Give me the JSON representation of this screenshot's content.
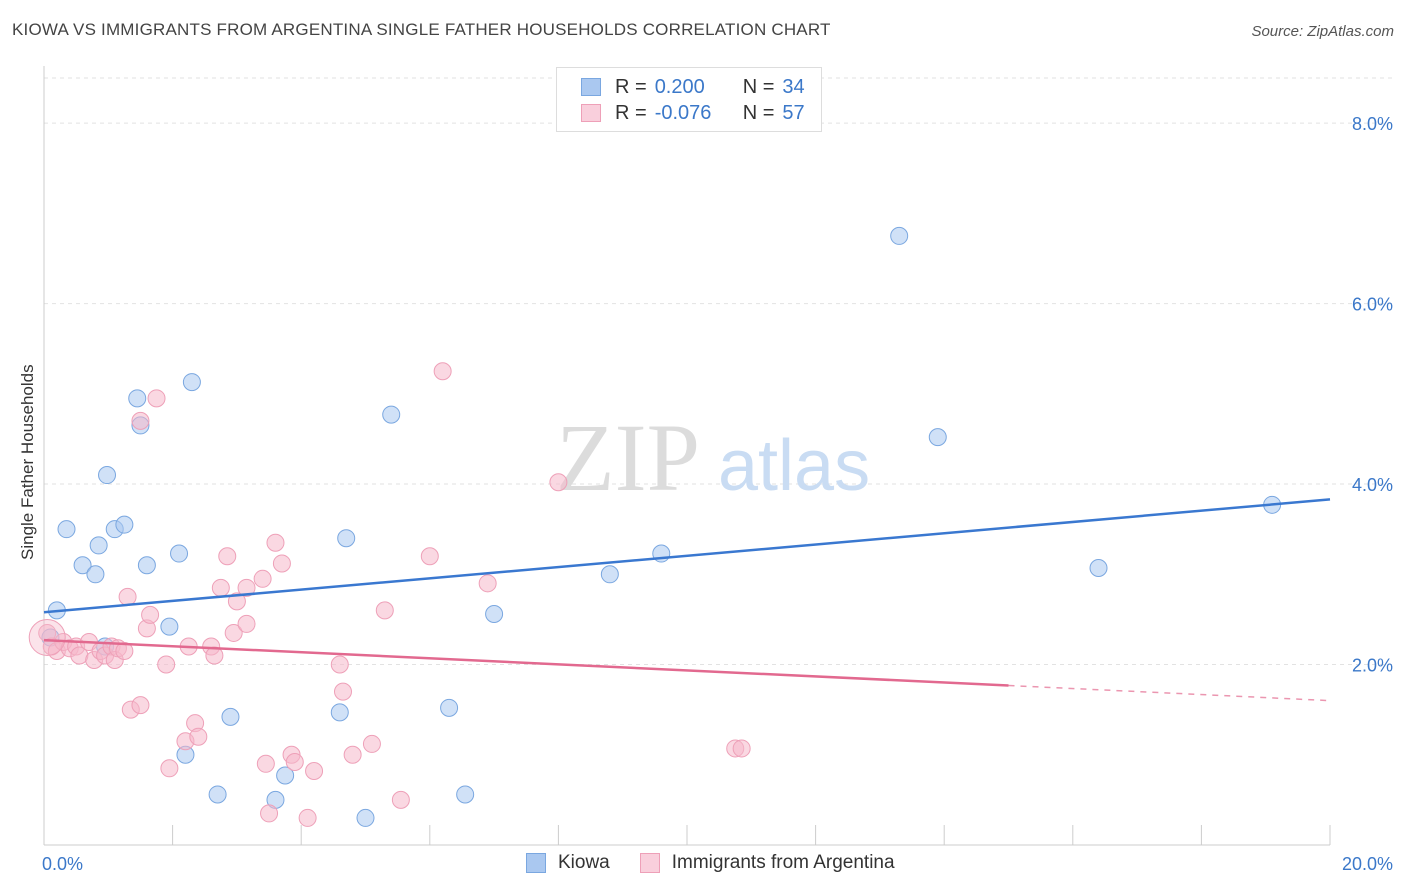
{
  "title": "KIOWA VS IMMIGRANTS FROM ARGENTINA SINGLE FATHER HOUSEHOLDS CORRELATION CHART",
  "source": "Source: ZipAtlas.com",
  "watermark": {
    "zip": "ZIP",
    "atlas": "atlas"
  },
  "legend_top": {
    "rows": [
      {
        "r_label": "R =",
        "r_value": "0.200",
        "n_label": "N =",
        "n_value": "34",
        "color": "#aac8f0"
      },
      {
        "r_label": "R =",
        "r_value": "-0.076",
        "n_label": "N =",
        "n_value": "57",
        "color": "#f5b8cb"
      }
    ]
  },
  "legend_bottom": [
    {
      "label": "Kiowa",
      "color": "#aac8f0"
    },
    {
      "label": "Immigrants from Argentina",
      "color": "#f5b8cb"
    }
  ],
  "chart_data": {
    "type": "scatter",
    "title": "KIOWA VS IMMIGRANTS FROM ARGENTINA SINGLE FATHER HOUSEHOLDS CORRELATION CHART",
    "xlabel": "",
    "ylabel": "Single Father Households",
    "xlim": [
      0,
      20
    ],
    "ylim": [
      0,
      8.5
    ],
    "x_tick_labels": [
      "0.0%",
      "20.0%"
    ],
    "y_ticks": [
      2,
      4,
      6,
      8
    ],
    "y_tick_labels": [
      "2.0%",
      "4.0%",
      "6.0%",
      "8.0%"
    ],
    "grid": true,
    "series": [
      {
        "name": "Kiowa",
        "color": "#3a78d0",
        "fill": "#aac8f0",
        "trend": {
          "x0": 0,
          "y0": 2.58,
          "x1": 20,
          "y1": 3.83,
          "dashed_from": null
        },
        "points": [
          [
            0.2,
            2.6
          ],
          [
            0.35,
            3.5
          ],
          [
            0.6,
            3.1
          ],
          [
            0.8,
            3.0
          ],
          [
            0.85,
            3.32
          ],
          [
            0.95,
            2.2
          ],
          [
            0.98,
            4.1
          ],
          [
            1.1,
            3.5
          ],
          [
            1.25,
            3.55
          ],
          [
            1.45,
            4.95
          ],
          [
            1.5,
            4.65
          ],
          [
            1.6,
            3.1
          ],
          [
            1.95,
            2.42
          ],
          [
            2.1,
            3.23
          ],
          [
            2.2,
            1.0
          ],
          [
            2.3,
            5.13
          ],
          [
            2.7,
            0.56
          ],
          [
            2.9,
            1.42
          ],
          [
            3.6,
            0.5
          ],
          [
            3.75,
            0.77
          ],
          [
            4.6,
            1.47
          ],
          [
            4.7,
            3.4
          ],
          [
            5.0,
            0.3
          ],
          [
            5.4,
            4.77
          ],
          [
            6.3,
            1.52
          ],
          [
            6.55,
            0.56
          ],
          [
            7.0,
            2.56
          ],
          [
            8.8,
            3.0
          ],
          [
            9.6,
            3.23
          ],
          [
            13.3,
            6.75
          ],
          [
            13.9,
            4.52
          ],
          [
            16.4,
            3.07
          ],
          [
            19.1,
            3.77
          ],
          [
            0.1,
            2.3
          ]
        ]
      },
      {
        "name": "Immigrants from Argentina",
        "color": "#e2698f",
        "fill": "#f5b8cb",
        "trend": {
          "x0": 0,
          "y0": 2.27,
          "x1": 20,
          "y1": 1.6,
          "dashed_from": 15
        },
        "points": [
          [
            0.05,
            2.35
          ],
          [
            0.12,
            2.2
          ],
          [
            0.2,
            2.15
          ],
          [
            0.3,
            2.25
          ],
          [
            0.4,
            2.18
          ],
          [
            0.5,
            2.2
          ],
          [
            0.55,
            2.1
          ],
          [
            0.7,
            2.25
          ],
          [
            0.78,
            2.05
          ],
          [
            0.88,
            2.15
          ],
          [
            0.95,
            2.1
          ],
          [
            1.05,
            2.2
          ],
          [
            1.1,
            2.05
          ],
          [
            1.15,
            2.18
          ],
          [
            1.25,
            2.15
          ],
          [
            1.3,
            2.75
          ],
          [
            1.35,
            1.5
          ],
          [
            1.5,
            1.55
          ],
          [
            1.5,
            4.7
          ],
          [
            1.6,
            2.4
          ],
          [
            1.65,
            2.55
          ],
          [
            1.75,
            4.95
          ],
          [
            1.9,
            2.0
          ],
          [
            1.95,
            0.85
          ],
          [
            2.2,
            1.15
          ],
          [
            2.25,
            2.2
          ],
          [
            2.35,
            1.35
          ],
          [
            2.4,
            1.2
          ],
          [
            2.6,
            2.2
          ],
          [
            2.65,
            2.1
          ],
          [
            2.75,
            2.85
          ],
          [
            2.85,
            3.2
          ],
          [
            2.95,
            2.35
          ],
          [
            3.0,
            2.7
          ],
          [
            3.15,
            2.45
          ],
          [
            3.15,
            2.85
          ],
          [
            3.4,
            2.95
          ],
          [
            3.45,
            0.9
          ],
          [
            3.5,
            0.35
          ],
          [
            3.6,
            3.35
          ],
          [
            3.7,
            3.12
          ],
          [
            3.85,
            1.0
          ],
          [
            3.9,
            0.92
          ],
          [
            4.1,
            0.3
          ],
          [
            4.2,
            0.82
          ],
          [
            4.6,
            2.0
          ],
          [
            4.65,
            1.7
          ],
          [
            4.8,
            1.0
          ],
          [
            5.1,
            1.12
          ],
          [
            5.3,
            2.6
          ],
          [
            5.55,
            0.5
          ],
          [
            6.0,
            3.2
          ],
          [
            6.2,
            5.25
          ],
          [
            6.9,
            2.9
          ],
          [
            8.0,
            4.02
          ],
          [
            10.75,
            1.07
          ],
          [
            10.85,
            1.07
          ]
        ]
      }
    ]
  }
}
